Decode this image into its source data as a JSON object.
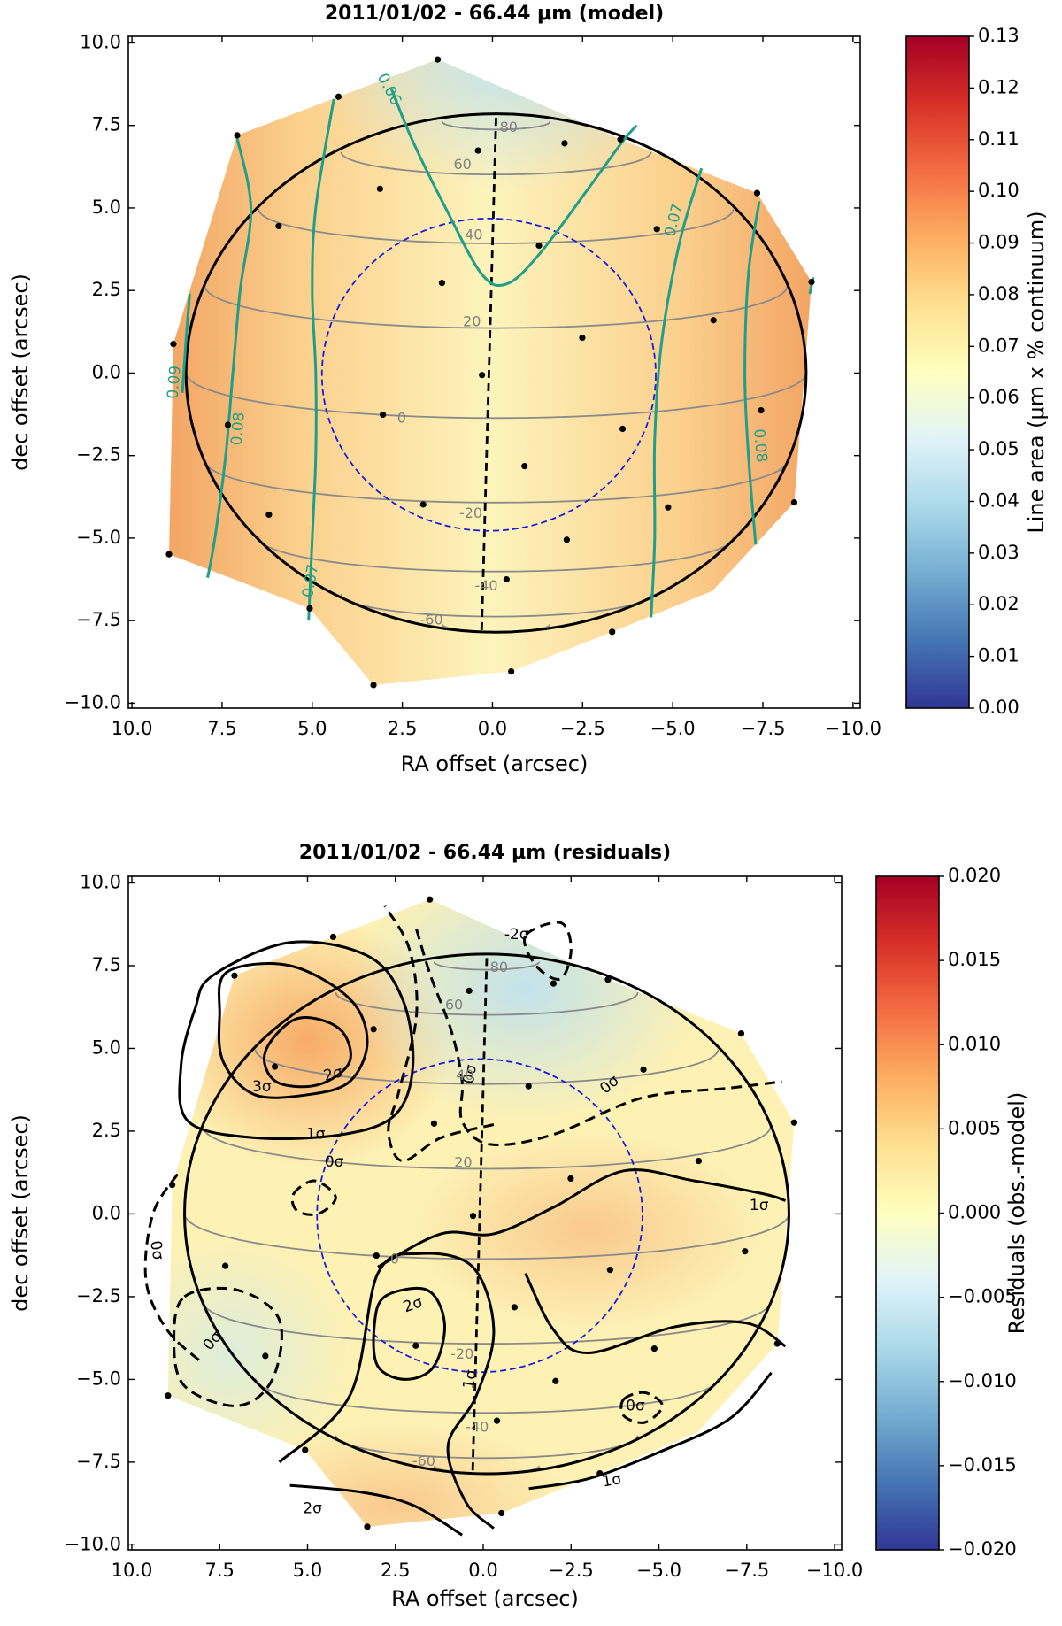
{
  "chart_data": [
    {
      "type": "contour",
      "title": "2011/01/02 - 66.44 μm (model)",
      "xlabel": "RA offset (arcsec)",
      "ylabel": "dec offset (arcsec)",
      "xlim": [
        10.1,
        -10.2
      ],
      "ylim": [
        -10.15,
        10.2
      ],
      "xticks": [
        {
          "value": 10,
          "label": "10.0"
        },
        {
          "value": 7.5,
          "label": "7.5"
        },
        {
          "value": 5,
          "label": "5.0"
        },
        {
          "value": 2.5,
          "label": "2.5"
        },
        {
          "value": 0,
          "label": "0.0"
        },
        {
          "value": -2.5,
          "label": "−2.5"
        },
        {
          "value": -5,
          "label": "−5.0"
        },
        {
          "value": -7.5,
          "label": "−7.5"
        },
        {
          "value": -10,
          "label": "−10.0"
        }
      ],
      "yticks": [
        {
          "value": 10,
          "label": "10.0"
        },
        {
          "value": 7.5,
          "label": "7.5"
        },
        {
          "value": 5,
          "label": "5.0"
        },
        {
          "value": 2.5,
          "label": "2.5"
        },
        {
          "value": 0,
          "label": "0.0"
        },
        {
          "value": -2.5,
          "label": "−2.5"
        },
        {
          "value": -5,
          "label": "−5.0"
        },
        {
          "value": -7.5,
          "label": "−7.5"
        },
        {
          "value": -10,
          "label": "−10.0"
        }
      ],
      "colorbar": {
        "label": "Line area (μm x % continuum)",
        "lim": [
          0,
          0.13
        ],
        "ticks": [
          {
            "value": 0,
            "label": "0.00"
          },
          {
            "value": 0.01,
            "label": "0.01"
          },
          {
            "value": 0.02,
            "label": "0.02"
          },
          {
            "value": 0.03,
            "label": "0.03"
          },
          {
            "value": 0.04,
            "label": "0.04"
          },
          {
            "value": 0.05,
            "label": "0.05"
          },
          {
            "value": 0.06,
            "label": "0.06"
          },
          {
            "value": 0.07,
            "label": "0.07"
          },
          {
            "value": 0.08,
            "label": "0.08"
          },
          {
            "value": 0.09,
            "label": "0.09"
          },
          {
            "value": 0.1,
            "label": "0.10"
          },
          {
            "value": 0.11,
            "label": "0.11"
          },
          {
            "value": 0.12,
            "label": "0.12"
          },
          {
            "value": 0.13,
            "label": "0.13"
          }
        ]
      },
      "contour_color": "#1f9e89",
      "contour_labels": [
        "0.06",
        "0.07",
        "0.08",
        "0.08",
        "0.07",
        "0.09"
      ],
      "latitude_labels": [
        80,
        60,
        40,
        20,
        0,
        -20,
        -40,
        -60
      ],
      "points": {
        "x": [
          1.52,
          4.27,
          7.08,
          5.93,
          3.12,
          1.4,
          0.4,
          -1.29,
          0.29,
          -2.49,
          3.04,
          7.34,
          8.85,
          6.2,
          8.97,
          1.92,
          -0.89,
          -3.61,
          -2.06,
          -0.39,
          5.07,
          3.3,
          -0.52,
          -3.32,
          -4.87,
          -8.37,
          -7.45,
          -6.13,
          -4.56,
          -3.55,
          -7.34,
          -8.85,
          -2.0
        ],
        "y": [
          9.5,
          8.37,
          7.2,
          4.45,
          5.58,
          2.73,
          6.74,
          3.86,
          -0.06,
          1.07,
          -1.26,
          -1.57,
          0.88,
          -4.29,
          -5.49,
          -3.98,
          -2.82,
          -1.69,
          -5.05,
          -6.25,
          -7.13,
          -9.45,
          -9.04,
          -7.84,
          -4.07,
          -3.92,
          -1.13,
          1.6,
          4.36,
          7.08,
          5.45,
          2.76,
          6.96
        ]
      }
    },
    {
      "type": "contour",
      "title": "2011/01/02 - 66.44 μm (residuals)",
      "xlabel": "RA offset (arcsec)",
      "ylabel": "dec offset (arcsec)",
      "xlim": [
        10.1,
        -10.2
      ],
      "ylim": [
        -10.15,
        10.2
      ],
      "xticks": [
        {
          "value": 10,
          "label": "10.0"
        },
        {
          "value": 7.5,
          "label": "7.5"
        },
        {
          "value": 5,
          "label": "5.0"
        },
        {
          "value": 2.5,
          "label": "2.5"
        },
        {
          "value": 0,
          "label": "0.0"
        },
        {
          "value": -2.5,
          "label": "−2.5"
        },
        {
          "value": -5,
          "label": "−5.0"
        },
        {
          "value": -7.5,
          "label": "−7.5"
        },
        {
          "value": -10,
          "label": "−10.0"
        }
      ],
      "yticks": [
        {
          "value": 10,
          "label": "10.0"
        },
        {
          "value": 7.5,
          "label": "7.5"
        },
        {
          "value": 5,
          "label": "5.0"
        },
        {
          "value": 2.5,
          "label": "2.5"
        },
        {
          "value": 0,
          "label": "0.0"
        },
        {
          "value": -2.5,
          "label": "−2.5"
        },
        {
          "value": -5,
          "label": "−5.0"
        },
        {
          "value": -7.5,
          "label": "−7.5"
        },
        {
          "value": -10,
          "label": "−10.0"
        }
      ],
      "colorbar": {
        "label": "Residuals (obs.-model)",
        "lim": [
          -0.02,
          0.02
        ],
        "ticks": [
          {
            "value": -0.02,
            "label": "−0.020"
          },
          {
            "value": -0.015,
            "label": "−0.015"
          },
          {
            "value": -0.01,
            "label": "−0.010"
          },
          {
            "value": -0.005,
            "label": "−0.005"
          },
          {
            "value": 0,
            "label": "0.000"
          },
          {
            "value": 0.005,
            "label": "0.005"
          },
          {
            "value": 0.01,
            "label": "0.010"
          },
          {
            "value": 0.015,
            "label": "0.015"
          },
          {
            "value": 0.02,
            "label": "0.020"
          }
        ]
      },
      "contour_color": "#000000",
      "contour_labels": [
        "-2σ",
        "3σ",
        "2σ",
        "1σ",
        "0σ",
        "0σ",
        "1σ",
        "0σ",
        "0σ",
        "0σ",
        "2σ",
        "1σ",
        "0σ",
        "1σ",
        "2σ"
      ],
      "latitude_labels": [
        80,
        60,
        40,
        20,
        0,
        -20,
        -40,
        -60
      ],
      "points": {
        "x": [
          1.52,
          4.27,
          7.08,
          5.93,
          3.12,
          1.4,
          0.4,
          -1.29,
          0.29,
          -2.49,
          3.04,
          7.34,
          8.85,
          6.2,
          8.97,
          1.92,
          -0.89,
          -3.61,
          -2.06,
          -0.39,
          5.07,
          3.3,
          -0.52,
          -3.32,
          -4.87,
          -8.37,
          -7.45,
          -6.13,
          -4.56,
          -3.55,
          -7.34,
          -8.85,
          -2.0
        ],
        "y": [
          9.5,
          8.37,
          7.2,
          4.45,
          5.58,
          2.73,
          6.74,
          3.86,
          -0.06,
          1.07,
          -1.26,
          -1.57,
          0.88,
          -4.29,
          -5.49,
          -3.98,
          -2.82,
          -1.69,
          -5.05,
          -6.25,
          -7.13,
          -9.45,
          -9.04,
          -7.84,
          -4.07,
          -3.92,
          -1.13,
          1.6,
          4.36,
          7.08,
          5.45,
          2.76,
          6.96
        ]
      }
    }
  ]
}
